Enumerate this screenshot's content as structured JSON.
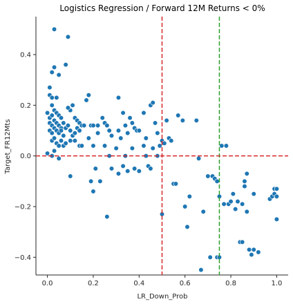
{
  "chart_data": {
    "type": "scatter",
    "title": "Logistics Regression / Forward 12M Returns < 0%",
    "xlabel": "LR_Down_Prob",
    "ylabel": "Target_FR12Mts",
    "xlim": [
      -0.05,
      1.05
    ],
    "ylim": [
      -0.47,
      0.55
    ],
    "xticks": [
      0.0,
      0.2,
      0.4,
      0.6,
      0.8,
      1.0
    ],
    "xtick_labels": [
      "0.0",
      "0.2",
      "0.4",
      "0.6",
      "0.8",
      "1.0"
    ],
    "yticks": [
      -0.4,
      -0.2,
      0.0,
      0.2,
      0.4
    ],
    "ytick_labels": [
      "−0.4",
      "−0.2",
      "0.0",
      "0.2",
      "0.4"
    ],
    "grid": false,
    "colors": {
      "points": "#1f77b4",
      "point_edge": "#ffffff",
      "red_line": "#d62728",
      "green_line": "#2ca02c"
    },
    "reference_lines": [
      {
        "orientation": "vertical",
        "value": 0.5,
        "color": "#d62728",
        "style": "dashed"
      },
      {
        "orientation": "vertical",
        "value": 0.75,
        "color": "#2ca02c",
        "style": "dashed"
      },
      {
        "orientation": "horizontal",
        "value": 0.0,
        "color": "#d62728",
        "style": "dashed"
      }
    ],
    "points": [
      [
        0.03,
        0.5
      ],
      [
        0.09,
        0.47
      ],
      [
        0.02,
        0.33
      ],
      [
        0.03,
        0.35
      ],
      [
        0.05,
        0.32
      ],
      [
        0.08,
        0.36
      ],
      [
        0.01,
        0.27
      ],
      [
        0.01,
        0.24
      ],
      [
        0.02,
        0.23
      ],
      [
        0.04,
        0.23
      ],
      [
        0.02,
        0.2
      ],
      [
        0.0,
        0.17
      ],
      [
        0.01,
        0.15
      ],
      [
        0.02,
        0.16
      ],
      [
        0.03,
        0.18
      ],
      [
        0.04,
        0.17
      ],
      [
        0.05,
        0.16
      ],
      [
        0.06,
        0.15
      ],
      [
        0.01,
        0.13
      ],
      [
        0.02,
        0.12
      ],
      [
        0.03,
        0.14
      ],
      [
        0.04,
        0.13
      ],
      [
        0.05,
        0.12
      ],
      [
        0.06,
        0.11
      ],
      [
        0.07,
        0.13
      ],
      [
        0.01,
        0.1
      ],
      [
        0.02,
        0.09
      ],
      [
        0.03,
        0.11
      ],
      [
        0.04,
        0.1
      ],
      [
        0.05,
        0.09
      ],
      [
        0.06,
        0.1
      ],
      [
        0.07,
        0.08
      ],
      [
        0.08,
        0.11
      ],
      [
        0.09,
        0.12
      ],
      [
        0.1,
        0.18
      ],
      [
        0.09,
        0.19
      ],
      [
        0.11,
        0.2
      ],
      [
        0.12,
        0.15
      ],
      [
        0.13,
        0.14
      ],
      [
        0.14,
        0.13
      ],
      [
        0.1,
        0.1
      ],
      [
        0.11,
        0.08
      ],
      [
        0.12,
        0.09
      ],
      [
        0.13,
        0.11
      ],
      [
        0.14,
        0.1
      ],
      [
        0.15,
        0.12
      ],
      [
        0.16,
        0.12
      ],
      [
        0.17,
        0.22
      ],
      [
        0.18,
        0.24
      ],
      [
        0.19,
        0.12
      ],
      [
        0.2,
        0.12
      ],
      [
        0.22,
        0.12
      ],
      [
        0.02,
        0.06
      ],
      [
        0.03,
        0.07
      ],
      [
        0.04,
        0.05
      ],
      [
        0.05,
        0.04
      ],
      [
        0.06,
        0.06
      ],
      [
        0.07,
        0.04
      ],
      [
        0.08,
        0.05
      ],
      [
        0.1,
        0.06
      ],
      [
        0.12,
        0.06
      ],
      [
        0.14,
        0.04
      ],
      [
        0.15,
        0.04
      ],
      [
        0.18,
        0.07
      ],
      [
        0.22,
        0.09
      ],
      [
        0.2,
        0.04
      ],
      [
        0.0,
        0.01
      ],
      [
        0.02,
        0.0
      ],
      [
        0.05,
        -0.01
      ],
      [
        0.03,
        0.02
      ],
      [
        0.1,
        -0.08
      ],
      [
        0.21,
        -0.05
      ],
      [
        0.19,
        -0.1
      ],
      [
        0.2,
        -0.14
      ],
      [
        0.23,
        -0.1
      ],
      [
        0.26,
        -0.24
      ],
      [
        0.24,
        0.15
      ],
      [
        0.25,
        0.13
      ],
      [
        0.26,
        0.12
      ],
      [
        0.27,
        0.1
      ],
      [
        0.28,
        0.08
      ],
      [
        0.25,
        0.04
      ],
      [
        0.27,
        0.0
      ],
      [
        0.28,
        -0.05
      ],
      [
        0.31,
        0.23
      ],
      [
        0.33,
        0.17
      ],
      [
        0.34,
        0.12
      ],
      [
        0.35,
        0.09
      ],
      [
        0.31,
        0.1
      ],
      [
        0.3,
        0.03
      ],
      [
        0.32,
        0.07
      ],
      [
        0.31,
        -0.07
      ],
      [
        0.33,
        -0.04
      ],
      [
        0.35,
        -0.06
      ],
      [
        0.34,
        0.0
      ],
      [
        0.36,
        0.15
      ],
      [
        0.37,
        0.13
      ],
      [
        0.38,
        0.11
      ],
      [
        0.39,
        0.1
      ],
      [
        0.4,
        0.1
      ],
      [
        0.37,
        0.03
      ],
      [
        0.38,
        -0.05
      ],
      [
        0.4,
        -0.06
      ],
      [
        0.42,
        0.17
      ],
      [
        0.42,
        0.04
      ],
      [
        0.43,
        0.07
      ],
      [
        0.43,
        0.0
      ],
      [
        0.44,
        -0.04
      ],
      [
        0.45,
        0.2
      ],
      [
        0.46,
        0.21
      ],
      [
        0.45,
        -0.05
      ],
      [
        0.47,
        0.13
      ],
      [
        0.48,
        0.09
      ],
      [
        0.46,
        0.03
      ],
      [
        0.49,
        0.04
      ],
      [
        0.48,
        0.0
      ],
      [
        0.5,
        0.06
      ],
      [
        0.51,
        0.05
      ],
      [
        0.5,
        -0.23
      ],
      [
        0.52,
        0.14
      ],
      [
        0.53,
        0.07
      ],
      [
        0.54,
        0.06
      ],
      [
        0.55,
        -0.11
      ],
      [
        0.56,
        -0.11
      ],
      [
        0.57,
        0.16
      ],
      [
        0.59,
        0.14
      ],
      [
        0.6,
        -0.2
      ],
      [
        0.61,
        -0.28
      ],
      [
        0.62,
        -0.16
      ],
      [
        0.65,
        0.14
      ],
      [
        0.66,
        -0.01
      ],
      [
        0.67,
        -0.45
      ],
      [
        0.68,
        -0.22
      ],
      [
        0.7,
        -0.08
      ],
      [
        0.71,
        -0.4
      ],
      [
        0.72,
        -0.08
      ],
      [
        0.73,
        -0.09
      ],
      [
        0.74,
        -0.1
      ],
      [
        0.74,
        -0.4
      ],
      [
        0.75,
        -0.16
      ],
      [
        0.75,
        -0.4
      ],
      [
        0.76,
        0.04
      ],
      [
        0.77,
        -0.19
      ],
      [
        0.78,
        0.04
      ],
      [
        0.79,
        -0.19
      ],
      [
        0.8,
        -0.18
      ],
      [
        0.81,
        -0.15
      ],
      [
        0.82,
        -0.21
      ],
      [
        0.83,
        -0.18
      ],
      [
        0.84,
        -0.34
      ],
      [
        0.85,
        -0.34
      ],
      [
        0.85,
        -0.19
      ],
      [
        0.86,
        -0.12
      ],
      [
        0.86,
        -0.1
      ],
      [
        0.87,
        -0.07
      ],
      [
        0.87,
        -0.22
      ],
      [
        0.88,
        -0.37
      ],
      [
        0.89,
        -0.39
      ],
      [
        0.9,
        -0.37
      ],
      [
        0.9,
        -0.15
      ],
      [
        0.92,
        -0.38
      ],
      [
        0.97,
        -0.17
      ],
      [
        0.98,
        -0.16
      ],
      [
        0.99,
        -0.13
      ],
      [
        0.99,
        -0.15
      ],
      [
        1.0,
        -0.13
      ],
      [
        1.0,
        -0.16
      ],
      [
        1.0,
        -0.25
      ]
    ]
  }
}
